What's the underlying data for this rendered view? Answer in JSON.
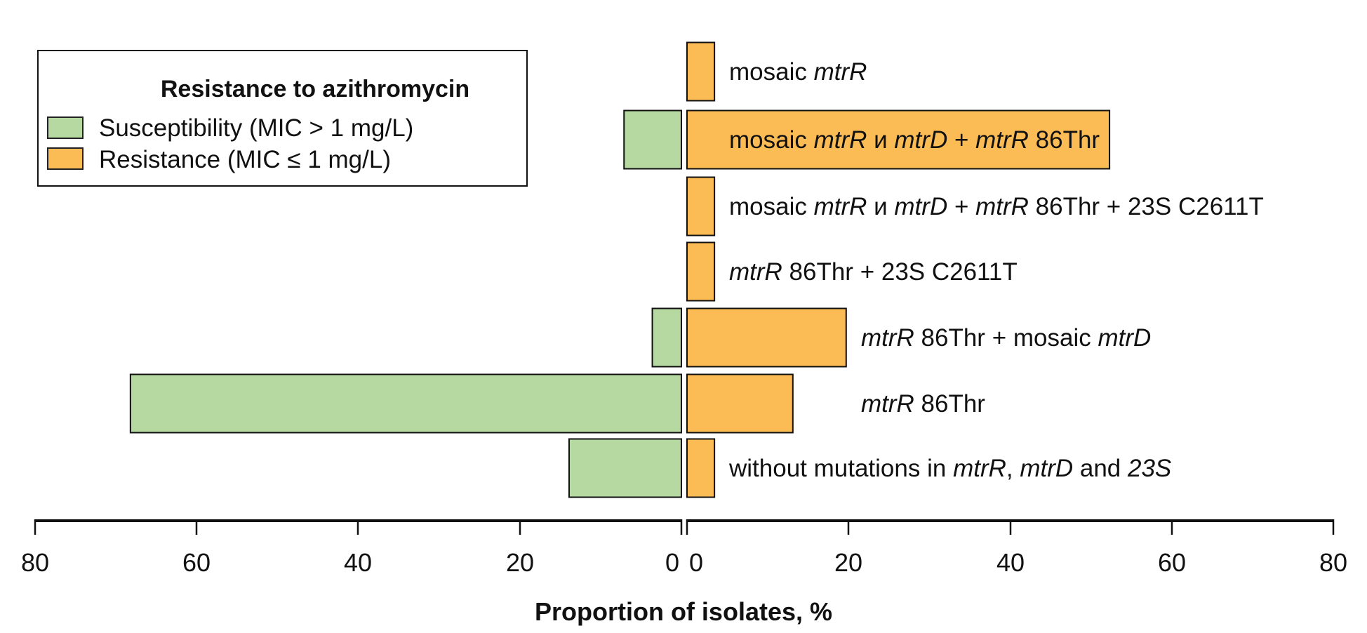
{
  "chart_data": {
    "type": "bar",
    "orientation": "horizontal",
    "layout": "back-to-back",
    "xlabel": "Proportion of isolates, %",
    "xlim": [
      -80,
      80
    ],
    "x_ticks": [
      "80",
      "60",
      "40",
      "20",
      "0",
      "0",
      "20",
      "40",
      "60",
      "80"
    ],
    "legend": {
      "title": "Resistance to azithromycin",
      "placement": "top-left",
      "entries": [
        {
          "label": "Susceptibility (MIC > 1 mg/L)",
          "color": "#b5d9a0"
        },
        {
          "label": "Resistance (MIC ≤ 1 mg/L)",
          "color": "#fbbb55"
        }
      ]
    },
    "categories": [
      {
        "segments": [
          {
            "t": "mosaic ",
            "i": false
          },
          {
            "t": "mtrR",
            "i": true
          }
        ]
      },
      {
        "segments": [
          {
            "t": "mosaic ",
            "i": false
          },
          {
            "t": "mtrR",
            "i": true
          },
          {
            "t": " и ",
            "i": false
          },
          {
            "t": "mtrD",
            "i": true
          },
          {
            "t": " + ",
            "i": false
          },
          {
            "t": "mtrR",
            "i": true
          },
          {
            "t": " 86Thr",
            "i": false
          }
        ]
      },
      {
        "segments": [
          {
            "t": "mosaic ",
            "i": false
          },
          {
            "t": "mtrR",
            "i": true
          },
          {
            "t": " и ",
            "i": false
          },
          {
            "t": "mtrD",
            "i": true
          },
          {
            "t": " + ",
            "i": false
          },
          {
            "t": "mtrR",
            "i": true
          },
          {
            "t": " 86Thr + 23S C2611T",
            "i": false
          }
        ]
      },
      {
        "segments": [
          {
            "t": "mtrR",
            "i": true
          },
          {
            "t": " 86Thr + 23S C2611T",
            "i": false
          }
        ]
      },
      {
        "segments": [
          {
            "t": "mtrR",
            "i": true
          },
          {
            "t": " 86Thr + mosaic ",
            "i": false
          },
          {
            "t": "mtrD",
            "i": true
          }
        ]
      },
      {
        "segments": [
          {
            "t": "mtrR",
            "i": true
          },
          {
            "t": " 86Thr",
            "i": false
          }
        ]
      },
      {
        "segments": [
          {
            "t": "without mutations in ",
            "i": false
          },
          {
            "t": "mtrR",
            "i": true
          },
          {
            "t": ", ",
            "i": false
          },
          {
            "t": "mtrD",
            "i": true
          },
          {
            "t": " and ",
            "i": false
          },
          {
            "t": "23S",
            "i": true
          }
        ]
      }
    ],
    "series": [
      {
        "name": "Susceptibility (MIC > 1 mg/L)",
        "side": "left",
        "color": "#b5d9a0",
        "values": [
          0,
          7.1,
          0,
          0,
          3.6,
          68.2,
          13.9
        ]
      },
      {
        "name": "Resistance (MIC ≤ 1 mg/L)",
        "side": "right",
        "color": "#fbbb55",
        "values": [
          3.4,
          52.3,
          3.4,
          3.4,
          19.7,
          13.1,
          3.4
        ]
      }
    ]
  }
}
